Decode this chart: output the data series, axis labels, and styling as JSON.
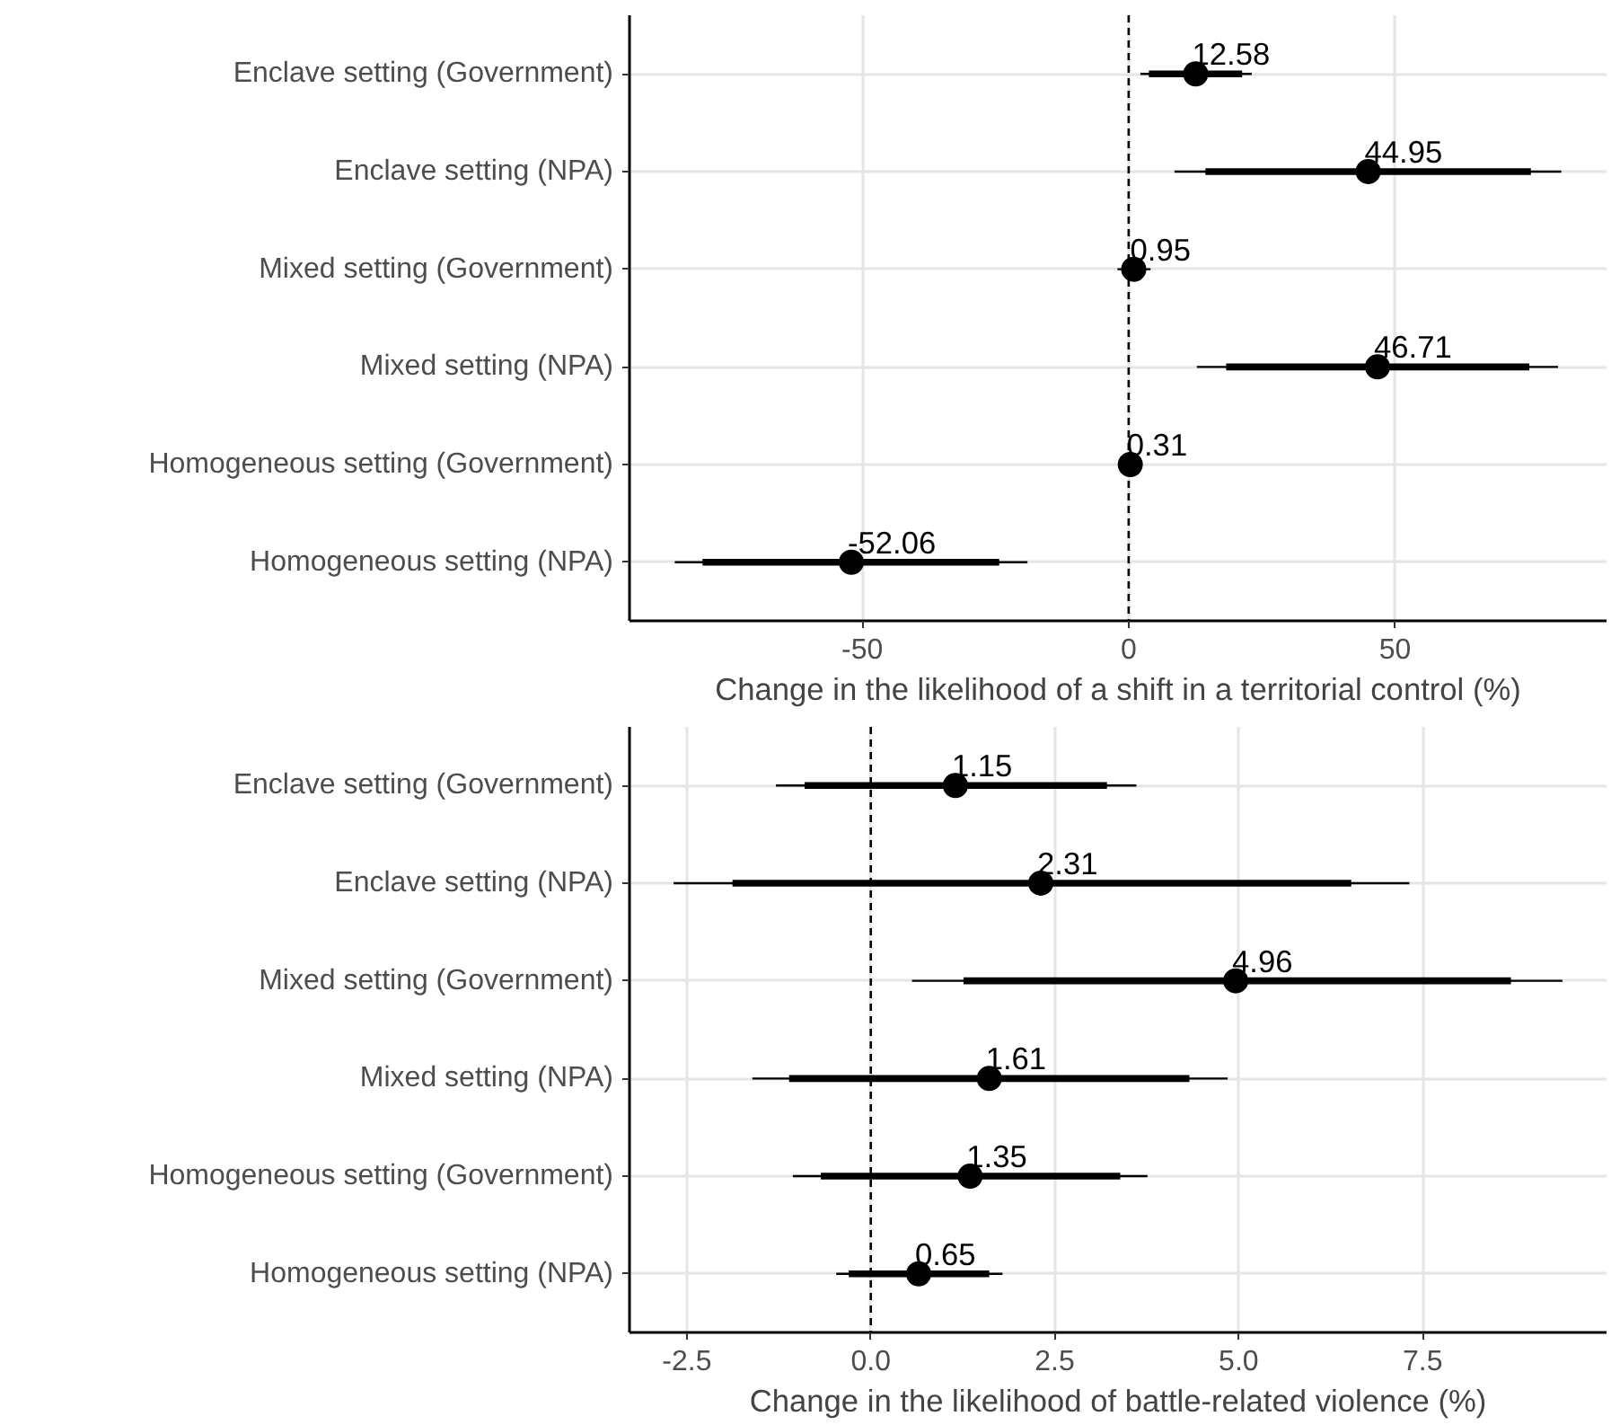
{
  "chart_data": [
    {
      "type": "scatter",
      "orientation": "horizontal",
      "xlabel": "Change in the likelihood of a shift in a territorial control (%)",
      "categories": [
        "Enclave setting (Government)",
        "Enclave setting (NPA)",
        "Mixed setting (Government)",
        "Mixed setting (NPA)",
        "Homogeneous setting (Government)",
        "Homogeneous setting (NPA)"
      ],
      "series": [
        {
          "type": "bar",
          "color": "#000000",
          "base": [
            3.8,
            14.4,
            null,
            18.3,
            null,
            -80.0
          ],
          "values": [
            17.5,
            61.1,
            null,
            56.9,
            null,
            55.7
          ]
        },
        {
          "color": "#000000",
          "marker": "circle",
          "data_labels": true,
          "values": [
            12.58,
            44.95,
            0.95,
            46.71,
            0.31,
            -52.06
          ],
          "errors": [
            [
              2.2,
              23.1
            ],
            [
              8.6,
              81.2
            ],
            [
              -2.1,
              4.1
            ],
            [
              12.8,
              80.6
            ],
            null,
            [
              -85.2,
              -19.0
            ]
          ]
        }
      ],
      "xlim": [
        -93.7,
        89.7
      ],
      "xticks": [
        -50,
        0,
        50
      ],
      "grid": true,
      "ref_lines": [
        {
          "axis": "x",
          "value": 0,
          "line_style": "dashed",
          "color": "#000000"
        }
      ]
    },
    {
      "type": "scatter",
      "orientation": "horizontal",
      "xlabel": "Change in the likelihood of battle-related violence (%)",
      "categories": [
        "Enclave setting (Government)",
        "Enclave setting (NPA)",
        "Mixed setting (Government)",
        "Mixed setting (NPA)",
        "Homogeneous setting (Government)",
        "Homogeneous setting (NPA)"
      ],
      "series": [
        {
          "type": "bar",
          "color": "#000000",
          "base": [
            -0.9,
            -1.88,
            1.26,
            -1.11,
            -0.68,
            -0.3
          ],
          "values": [
            4.11,
            8.41,
            7.44,
            5.44,
            4.07,
            1.91
          ]
        },
        {
          "color": "#000000",
          "marker": "circle",
          "data_labels": true,
          "values": [
            1.15,
            2.31,
            4.96,
            1.61,
            1.35,
            0.65
          ],
          "errors": [
            [
              -1.29,
              3.61
            ],
            [
              -2.68,
              7.32
            ],
            [
              0.56,
              9.4
            ],
            [
              -1.61,
              4.85
            ],
            [
              -1.06,
              3.76
            ],
            [
              -0.47,
              1.79
            ]
          ]
        }
      ],
      "xlim": [
        -3.28,
        10.0
      ],
      "xticks": [
        {
          "value": -2.5,
          "label": "-2.5"
        },
        {
          "value": 0,
          "label": "0.0"
        },
        {
          "value": 2.5,
          "label": "2.5"
        },
        {
          "value": 5,
          "label": "5.0"
        },
        {
          "value": 7.5,
          "label": "7.5"
        }
      ],
      "grid": true,
      "ref_lines": [
        {
          "axis": "x",
          "value": 0,
          "line_style": "dashed",
          "color": "#000000"
        }
      ]
    }
  ]
}
